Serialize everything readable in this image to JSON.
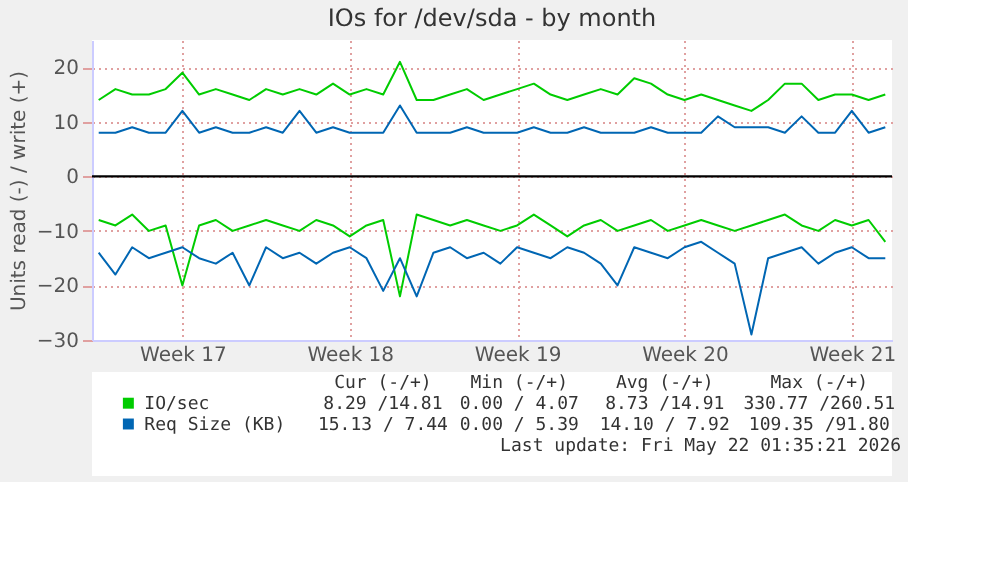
{
  "chart_data": {
    "type": "line",
    "title": "IOs for /dev/sda - by month",
    "ylabel": "Units read (-) / write (+)",
    "categories": [
      null,
      null,
      null,
      null,
      null,
      "Week 17",
      null,
      null,
      null,
      null,
      null,
      null,
      null,
      null,
      null,
      "Week 18",
      null,
      null,
      null,
      null,
      null,
      null,
      null,
      null,
      null,
      "Week 19",
      null,
      null,
      null,
      null,
      null,
      null,
      null,
      null,
      null,
      "Week 20",
      null,
      null,
      null,
      null,
      null,
      null,
      null,
      null,
      null,
      "Week 21",
      null,
      null
    ],
    "series": [
      {
        "name": "IO/sec",
        "color": "#00cc00",
        "values": [
          14,
          16,
          15,
          15,
          16,
          19,
          15,
          16,
          15,
          14,
          16,
          15,
          16,
          15,
          17,
          15,
          16,
          15,
          21,
          14,
          14,
          15,
          16,
          14,
          15,
          16,
          17,
          15,
          14,
          15,
          16,
          15,
          18,
          17,
          15,
          14,
          15,
          14,
          13,
          12,
          14,
          17,
          17,
          14,
          15,
          15,
          14,
          15
        ]
      },
      {
        "color": "#00cc00",
        "values": [
          -8,
          -9,
          -7,
          -10,
          -9,
          -20,
          -9,
          -8,
          -10,
          -9,
          -8,
          -9,
          -10,
          -8,
          -9,
          -11,
          -9,
          -8,
          -22,
          -7,
          -8,
          -9,
          -8,
          -9,
          -10,
          -9,
          -7,
          -9,
          -11,
          -9,
          -8,
          -10,
          -9,
          -8,
          -10,
          -9,
          -8,
          -9,
          -10,
          -9,
          -8,
          -7,
          -9,
          -10,
          -8,
          -9,
          -8,
          -12
        ]
      },
      {
        "name": "Req Size (KB)",
        "color": "#0066b3",
        "values": [
          8,
          8,
          9,
          8,
          8,
          12,
          8,
          9,
          8,
          8,
          9,
          8,
          12,
          8,
          9,
          8,
          8,
          8,
          13,
          8,
          8,
          8,
          9,
          8,
          8,
          8,
          9,
          8,
          8,
          9,
          8,
          8,
          8,
          9,
          8,
          8,
          8,
          11,
          9,
          9,
          9,
          8,
          11,
          8,
          8,
          12,
          8,
          9
        ]
      },
      {
        "color": "#0066b3",
        "values": [
          -14,
          -18,
          -13,
          -15,
          -14,
          -13,
          -15,
          -16,
          -14,
          -20,
          -13,
          -15,
          -14,
          -16,
          -14,
          -13,
          -15,
          -21,
          -15,
          -22,
          -14,
          -13,
          -15,
          -14,
          -16,
          -13,
          -14,
          -15,
          -13,
          -14,
          -16,
          -20,
          -13,
          -14,
          -15,
          -13,
          -12,
          -14,
          -16,
          -29,
          -15,
          -14,
          -13,
          -16,
          -14,
          -13,
          -15,
          -15
        ]
      }
    ],
    "ylim": [
      -30,
      25
    ],
    "yticks": [
      -30,
      -20,
      -10,
      0,
      10,
      20
    ],
    "ref_lines": [
      {
        "axis": "y",
        "value": 0,
        "color": "#000000"
      }
    ],
    "grid": true,
    "legend": "bottom",
    "line_style": "solid",
    "marker": "none",
    "annotations": [
      "Cur (-/+)",
      "Min (-/+)",
      "Avg (-/+)",
      "Max (-/+)",
      "8.29 /14.81",
      "0.00 / 4.07",
      "8.73 /14.91",
      "330.77 /260.51",
      "15.13 / 7.44",
      "0.00 / 5.39",
      "14.10 / 7.92",
      "109.35 /91.80",
      "Last update: Fri May 22 01:35:21 2026"
    ]
  }
}
